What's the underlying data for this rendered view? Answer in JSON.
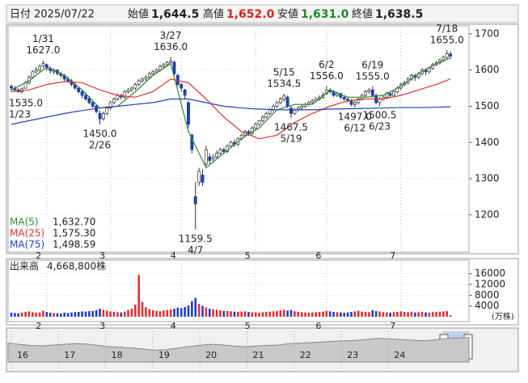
{
  "header": {
    "date_label": "日付",
    "date": "2025/07/22",
    "open_label": "始値",
    "open": "1,644.5",
    "high_label": "高値",
    "high": "1,652.0",
    "low_label": "安値",
    "low": "1,631.0",
    "close_label": "終値",
    "close": "1,638.5"
  },
  "chart_data": {
    "type": "candlestick",
    "ylim": [
      1097,
      1722
    ],
    "yticks": [
      1200,
      1300,
      1400,
      1500,
      1600,
      1700
    ],
    "grid": true,
    "up_color": "#ffffff",
    "down_color": "#1f3fb0",
    "candles": [
      [
        1555,
        1560,
        1542,
        1550
      ],
      [
        1550,
        1556,
        1540,
        1545
      ],
      [
        1545,
        1550,
        1537,
        1540
      ],
      [
        1540,
        1552,
        1535,
        1548
      ],
      [
        1550,
        1570,
        1548,
        1565
      ],
      [
        1565,
        1585,
        1560,
        1580
      ],
      [
        1580,
        1600,
        1575,
        1595
      ],
      [
        1595,
        1608,
        1590,
        1600
      ],
      [
        1600,
        1615,
        1595,
        1610
      ],
      [
        1612,
        1627,
        1605,
        1618
      ],
      [
        1615,
        1618,
        1598,
        1605
      ],
      [
        1605,
        1610,
        1590,
        1598
      ],
      [
        1595,
        1605,
        1588,
        1600
      ],
      [
        1600,
        1602,
        1585,
        1590
      ],
      [
        1590,
        1595,
        1578,
        1585
      ],
      [
        1585,
        1590,
        1570,
        1575
      ],
      [
        1575,
        1582,
        1565,
        1570
      ],
      [
        1570,
        1575,
        1555,
        1560
      ],
      [
        1560,
        1565,
        1545,
        1550
      ],
      [
        1550,
        1555,
        1535,
        1540
      ],
      [
        1540,
        1545,
        1522,
        1530
      ],
      [
        1530,
        1538,
        1515,
        1520
      ],
      [
        1522,
        1528,
        1505,
        1510
      ],
      [
        1510,
        1515,
        1495,
        1500
      ],
      [
        1500,
        1505,
        1480,
        1485
      ],
      [
        1480,
        1488,
        1450,
        1465
      ],
      [
        1465,
        1485,
        1460,
        1480
      ],
      [
        1480,
        1500,
        1475,
        1495
      ],
      [
        1495,
        1515,
        1490,
        1510
      ],
      [
        1510,
        1525,
        1505,
        1520
      ],
      [
        1520,
        1535,
        1515,
        1530
      ],
      [
        1530,
        1535,
        1518,
        1525
      ],
      [
        1525,
        1545,
        1520,
        1540
      ],
      [
        1540,
        1550,
        1535,
        1545
      ],
      [
        1545,
        1555,
        1540,
        1550
      ],
      [
        1550,
        1565,
        1545,
        1560
      ],
      [
        1560,
        1575,
        1555,
        1570
      ],
      [
        1570,
        1580,
        1565,
        1575
      ],
      [
        1575,
        1585,
        1570,
        1580
      ],
      [
        1580,
        1595,
        1575,
        1590
      ],
      [
        1590,
        1600,
        1585,
        1595
      ],
      [
        1595,
        1605,
        1590,
        1600
      ],
      [
        1600,
        1615,
        1595,
        1610
      ],
      [
        1610,
        1620,
        1605,
        1615
      ],
      [
        1615,
        1625,
        1610,
        1620
      ],
      [
        1620,
        1636,
        1615,
        1625
      ],
      [
        1622,
        1626,
        1585,
        1590
      ],
      [
        1585,
        1590,
        1555,
        1560
      ],
      [
        1560,
        1565,
        1540,
        1550
      ],
      [
        1545,
        1548,
        1520,
        1530
      ],
      [
        1510,
        1515,
        1440,
        1450
      ],
      [
        1420,
        1425,
        1370,
        1380
      ],
      [
        1250,
        1290,
        1159.5,
        1230
      ],
      [
        1290,
        1330,
        1280,
        1320
      ],
      [
        1310,
        1325,
        1280,
        1290
      ],
      [
        1340,
        1390,
        1335,
        1380
      ],
      [
        1360,
        1370,
        1340,
        1350
      ],
      [
        1355,
        1368,
        1345,
        1360
      ],
      [
        1360,
        1378,
        1355,
        1370
      ],
      [
        1370,
        1385,
        1365,
        1380
      ],
      [
        1380,
        1385,
        1368,
        1375
      ],
      [
        1375,
        1395,
        1370,
        1390
      ],
      [
        1390,
        1405,
        1385,
        1400
      ],
      [
        1400,
        1408,
        1388,
        1395
      ],
      [
        1395,
        1415,
        1390,
        1410
      ],
      [
        1410,
        1425,
        1405,
        1420
      ],
      [
        1420,
        1435,
        1415,
        1430
      ],
      [
        1430,
        1435,
        1418,
        1425
      ],
      [
        1425,
        1445,
        1420,
        1440
      ],
      [
        1440,
        1455,
        1435,
        1450
      ],
      [
        1450,
        1462,
        1445,
        1460
      ],
      [
        1460,
        1475,
        1455,
        1470
      ],
      [
        1470,
        1485,
        1465,
        1480
      ],
      [
        1480,
        1495,
        1475,
        1490
      ],
      [
        1490,
        1505,
        1485,
        1500
      ],
      [
        1500,
        1515,
        1495,
        1510
      ],
      [
        1510,
        1525,
        1505,
        1520
      ],
      [
        1520,
        1534.5,
        1512,
        1528
      ],
      [
        1525,
        1530,
        1495,
        1500
      ],
      [
        1495,
        1500,
        1467.5,
        1480
      ],
      [
        1480,
        1495,
        1475,
        1490
      ],
      [
        1490,
        1500,
        1485,
        1495
      ],
      [
        1495,
        1505,
        1490,
        1500
      ],
      [
        1500,
        1510,
        1495,
        1505
      ],
      [
        1505,
        1515,
        1500,
        1510
      ],
      [
        1510,
        1520,
        1505,
        1515
      ],
      [
        1515,
        1525,
        1510,
        1520
      ],
      [
        1520,
        1530,
        1515,
        1525
      ],
      [
        1525,
        1538,
        1520,
        1530
      ],
      [
        1535,
        1556,
        1530,
        1545
      ],
      [
        1545,
        1550,
        1535,
        1540
      ],
      [
        1540,
        1545,
        1525,
        1530
      ],
      [
        1530,
        1540,
        1525,
        1535
      ],
      [
        1535,
        1538,
        1520,
        1525
      ],
      [
        1525,
        1530,
        1515,
        1520
      ],
      [
        1520,
        1525,
        1510,
        1515
      ],
      [
        1515,
        1520,
        1500,
        1505
      ],
      [
        1505,
        1515,
        1497,
        1510
      ],
      [
        1510,
        1525,
        1505,
        1520
      ],
      [
        1520,
        1535,
        1515,
        1530
      ],
      [
        1530,
        1545,
        1525,
        1540
      ],
      [
        1540,
        1550,
        1535,
        1545
      ],
      [
        1545,
        1555,
        1525,
        1530
      ],
      [
        1530,
        1535,
        1505,
        1510
      ],
      [
        1510,
        1525,
        1500.5,
        1520
      ],
      [
        1520,
        1530,
        1515,
        1525
      ],
      [
        1525,
        1540,
        1520,
        1535
      ],
      [
        1535,
        1540,
        1525,
        1530
      ],
      [
        1530,
        1545,
        1525,
        1540
      ],
      [
        1540,
        1555,
        1535,
        1550
      ],
      [
        1550,
        1565,
        1545,
        1560
      ],
      [
        1560,
        1570,
        1555,
        1565
      ],
      [
        1565,
        1580,
        1560,
        1575
      ],
      [
        1575,
        1590,
        1570,
        1585
      ],
      [
        1585,
        1590,
        1570,
        1580
      ],
      [
        1580,
        1595,
        1575,
        1590
      ],
      [
        1590,
        1605,
        1585,
        1600
      ],
      [
        1600,
        1605,
        1585,
        1595
      ],
      [
        1595,
        1610,
        1590,
        1605
      ],
      [
        1605,
        1620,
        1600,
        1615
      ],
      [
        1615,
        1625,
        1610,
        1620
      ],
      [
        1620,
        1632,
        1615,
        1628
      ],
      [
        1628,
        1640,
        1622,
        1635
      ],
      [
        1635,
        1655,
        1630,
        1645
      ],
      [
        1644.5,
        1652,
        1631,
        1638.5
      ]
    ],
    "month_ticks": [
      {
        "value": 10,
        "label": "2"
      },
      {
        "value": 28,
        "label": "3"
      },
      {
        "value": 48,
        "label": "4"
      },
      {
        "value": 69,
        "label": "5"
      },
      {
        "value": 89,
        "label": "6"
      },
      {
        "value": 110,
        "label": "7"
      }
    ],
    "ma": [
      {
        "name": "MA(5)",
        "color": "#2e8b2e",
        "legend_label": "1,632.70",
        "x": [
          0,
          5,
          10,
          15,
          20,
          25,
          30,
          35,
          40,
          45,
          50,
          55,
          60,
          65,
          70,
          75,
          80,
          85,
          90,
          95,
          100,
          105,
          110,
          115,
          120,
          124
        ],
        "values": [
          1545,
          1570,
          1608,
          1585,
          1545,
          1495,
          1500,
          1540,
          1585,
          1618,
          1430,
          1330,
          1370,
          1410,
          1440,
          1490,
          1505,
          1505,
          1545,
          1525,
          1525,
          1530,
          1555,
          1590,
          1618,
          1632.7
        ]
      },
      {
        "name": "MA(25)",
        "color": "#e03030",
        "legend_label": "1,575.30",
        "x": [
          0,
          5,
          10,
          15,
          20,
          25,
          30,
          35,
          40,
          45,
          50,
          55,
          60,
          65,
          70,
          75,
          80,
          85,
          90,
          95,
          100,
          105,
          110,
          115,
          120,
          124
        ],
        "values": [
          1540,
          1545,
          1560,
          1568,
          1565,
          1545,
          1530,
          1525,
          1540,
          1575,
          1565,
          1520,
          1470,
          1430,
          1410,
          1420,
          1455,
          1480,
          1500,
          1515,
          1520,
          1520,
          1530,
          1545,
          1560,
          1575.3
        ]
      },
      {
        "name": "MA(75)",
        "color": "#2040c0",
        "legend_label": "1,498.59",
        "x": [
          0,
          5,
          10,
          15,
          20,
          25,
          30,
          35,
          40,
          45,
          50,
          55,
          60,
          65,
          70,
          75,
          80,
          85,
          90,
          95,
          100,
          105,
          110,
          115,
          120,
          124
        ],
        "values": [
          1450,
          1460,
          1470,
          1480,
          1488,
          1495,
          1500,
          1505,
          1510,
          1520,
          1520,
          1510,
          1500,
          1495,
          1492,
          1490,
          1490,
          1490,
          1492,
          1493,
          1494,
          1495,
          1496,
          1496,
          1497,
          1498.59
        ]
      }
    ],
    "annotations": [
      {
        "date": "1/31",
        "price": "1627.0",
        "index": 9,
        "side": "above"
      },
      {
        "date": "3/27",
        "price": "1636.0",
        "index": 45,
        "side": "above"
      },
      {
        "date": "5/15",
        "price": "1534.5",
        "index": 77,
        "side": "above"
      },
      {
        "date": "6/2",
        "price": "1556.0",
        "index": 89,
        "side": "above"
      },
      {
        "date": "6/19",
        "price": "1555.0",
        "index": 102,
        "side": "above"
      },
      {
        "date": "7/18",
        "price": "1655.0",
        "index": 123,
        "side": "above"
      },
      {
        "date": "1/23",
        "price": "1535.0",
        "index": 3,
        "side": "below"
      },
      {
        "date": "2/26",
        "price": "1450.0",
        "index": 25,
        "side": "below"
      },
      {
        "date": "4/7",
        "price": "1159.5",
        "index": 52,
        "side": "below"
      },
      {
        "date": "5/19",
        "price": "1467.5",
        "index": 79,
        "side": "below"
      },
      {
        "date": "6/12",
        "price": "1497.0",
        "index": 97,
        "side": "below"
      },
      {
        "date": "6/23",
        "price": "1500.5",
        "index": 104,
        "side": "below"
      }
    ],
    "volume": {
      "type": "bar",
      "title": "出来高",
      "total_label": "4,668,800株",
      "unit": "(万株)",
      "ylim": [
        0,
        21000
      ],
      "yticks": [
        4000,
        8000,
        12000,
        16000
      ],
      "up_color": "#e03030",
      "down_color": "#2040c0",
      "values": [
        1500,
        1400,
        1300,
        1600,
        1800,
        2000,
        1700,
        1500,
        1600,
        2200,
        1800,
        1500,
        1400,
        1300,
        1200,
        1500,
        1400,
        1600,
        1700,
        1800,
        2000,
        1900,
        2100,
        2200,
        2500,
        3000,
        2600,
        2300,
        2000,
        1800,
        1700,
        1600,
        1900,
        2500,
        3000,
        4500,
        15500,
        5500,
        3500,
        2800,
        2400,
        2200,
        2000,
        2300,
        2500,
        2700,
        3000,
        3400,
        3200,
        3600,
        4200,
        5800,
        7000,
        4800,
        4000,
        3500,
        3000,
        2800,
        2600,
        2400,
        2200,
        2100,
        2000,
        1900,
        1800,
        1900,
        2000,
        1800,
        1700,
        1600,
        1500,
        1700,
        1800,
        1900,
        2000,
        2200,
        2400,
        2600,
        2300,
        2500,
        2000,
        1800,
        1700,
        1600,
        1500,
        1600,
        1700,
        1800,
        1900,
        2200,
        2000,
        1800,
        1700,
        1600,
        1500,
        1600,
        1800,
        2000,
        2200,
        1900,
        1800,
        1700,
        2400,
        2100,
        1900,
        1700,
        1600,
        1500,
        1700,
        1800,
        2000,
        1800,
        1700,
        1900,
        1600,
        1700,
        1800,
        1600,
        1500,
        1700,
        1800,
        1900,
        2000,
        2100,
        470
      ]
    },
    "navigator": {
      "labels": [
        "16",
        "17",
        "18",
        "19",
        "20",
        "21",
        "22",
        "23",
        "24"
      ],
      "ylim": [
        600,
        1900
      ],
      "values": [
        1400,
        1350,
        1300,
        1280,
        1320,
        1350,
        1380,
        1360,
        1300,
        1250,
        1220,
        1200,
        1150,
        1100,
        1120,
        1180,
        1250,
        1300,
        1350,
        1330,
        1280,
        1250,
        1270,
        1300,
        1320,
        1380,
        1400,
        1420,
        1450,
        1480,
        1500,
        1520,
        1560,
        1600,
        1580,
        1550,
        1520,
        1500,
        1540,
        1600,
        1620,
        1638.5
      ]
    }
  }
}
